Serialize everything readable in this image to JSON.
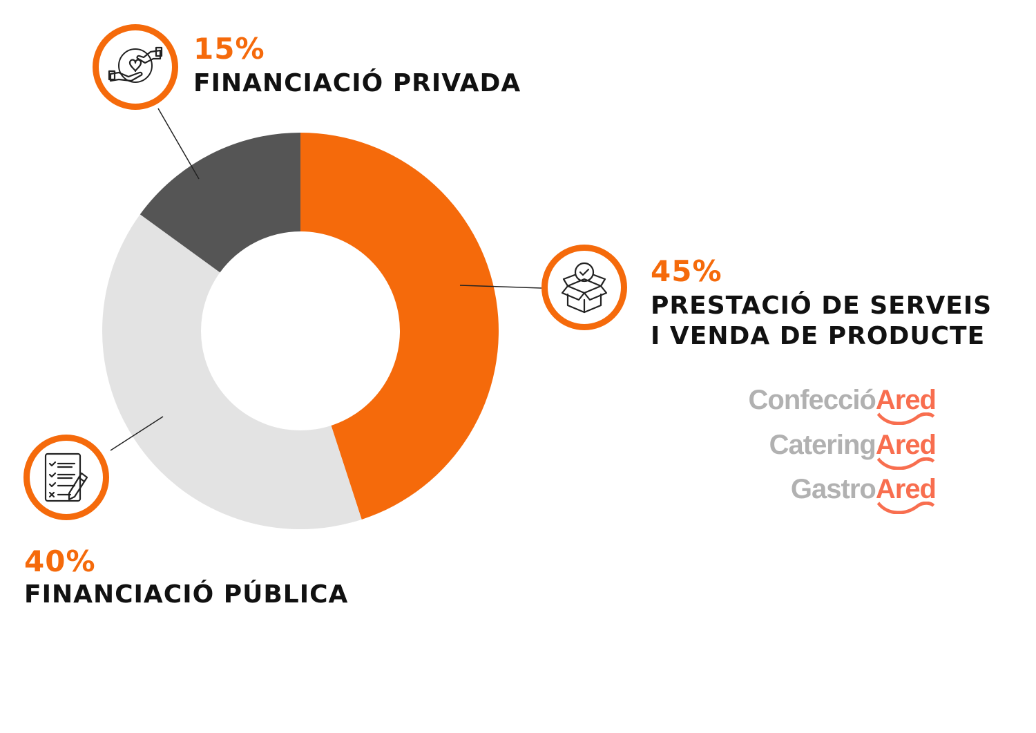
{
  "chart_data": {
    "type": "donut",
    "slices": [
      {
        "label": "PRESTACIÓ DE SERVEIS I VENDA DE PRODUCTE",
        "value": 45,
        "display": "45%",
        "color": "#f56a0b",
        "icon": "open-box-check-icon"
      },
      {
        "label": "FINANCIACIÓ PÚBLICA",
        "value": 40,
        "display": "40%",
        "color": "#e3e3e3",
        "icon": "checklist-pencil-icon"
      },
      {
        "label": "FINANCIACIÓ PRIVADA",
        "value": 15,
        "display": "15%",
        "color": "#555555",
        "icon": "hands-giving-heart-coin-icon"
      }
    ],
    "start": "12 o'clock",
    "direction": "clockwise"
  },
  "labels": {
    "privada": {
      "pct": "15%",
      "name": "FINANCIACIÓ PRIVADA"
    },
    "serveis": {
      "pct": "45%",
      "name_line1": "PRESTACIÓ DE SERVEIS",
      "name_line2": "I VENDA DE PRODUCTE"
    },
    "publica": {
      "pct": "40%",
      "name": "FINANCIACIÓ PÚBLICA"
    }
  },
  "brands": [
    {
      "grey": "Confecció",
      "orange": "Ared"
    },
    {
      "grey": "Catering",
      "orange": "Ared"
    },
    {
      "grey": "Gastro",
      "orange": "Ared"
    }
  ],
  "colors": {
    "accent": "#f56a0b",
    "dark_slice": "#555555",
    "light_slice": "#e3e3e3",
    "brand_grey": "#b1b1b1",
    "brand_orange": "#f86e4f"
  }
}
